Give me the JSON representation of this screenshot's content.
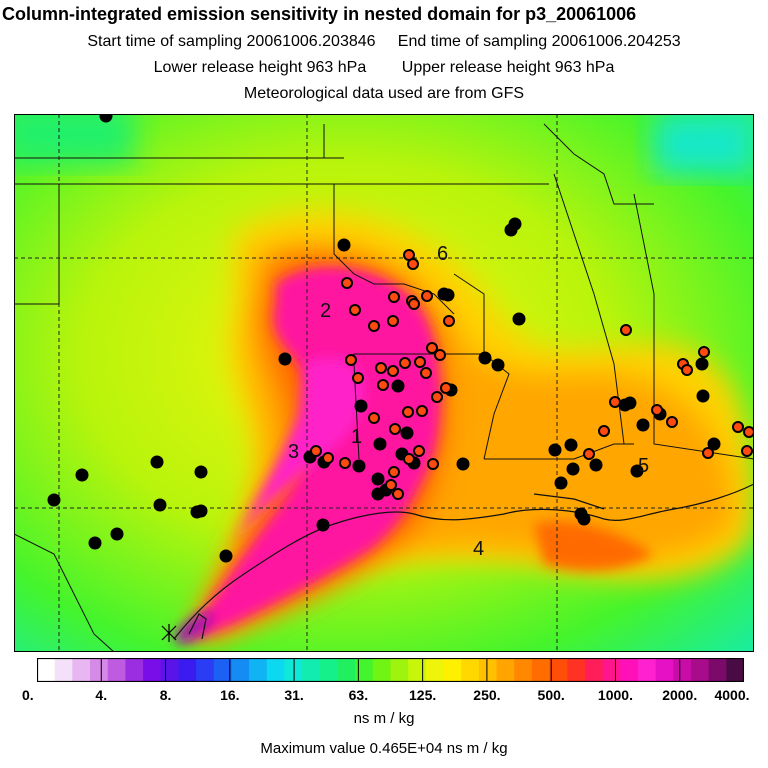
{
  "header": {
    "title": "Column-integrated emission sensitivity in nested domain for p3_20061006",
    "start_sampling": "Start time of sampling 20061006.203846",
    "end_sampling": "End time of sampling 20061006.204253",
    "lower_release": "Lower release height  963 hPa",
    "upper_release": "Upper release height  963 hPa",
    "met_data": "Meteorological data used are from GFS"
  },
  "map_labels": [
    "1",
    "2",
    "3",
    "4",
    "5",
    "6"
  ],
  "colorbar": {
    "ticks": [
      "0.",
      "4.",
      "8.",
      "16.",
      "31.",
      "63.",
      "125.",
      "250.",
      "500.",
      "1000.",
      "2000.",
      "4000."
    ],
    "units": "ns m / kg",
    "max_value": "Maximum value  0.465E+04 ns m / kg",
    "colors": [
      "#ffffff",
      "#f4e0f8",
      "#e8b6f0",
      "#d58ae8",
      "#bf5be0",
      "#9a2ee0",
      "#7a0ee8",
      "#5a14e8",
      "#3a1cf0",
      "#2a3cf4",
      "#1c60f4",
      "#148cf4",
      "#10b4f4",
      "#0cd8f0",
      "#10e8d8",
      "#12ecb0",
      "#16f08a",
      "#20f060",
      "#44f42c",
      "#70f414",
      "#9ef40c",
      "#c8f60a",
      "#eef40a",
      "#fff000",
      "#ffd800",
      "#ffc000",
      "#ffa400",
      "#ff8800",
      "#ff6c00",
      "#ff4e08",
      "#ff3224",
      "#ff1e5a",
      "#ff168c",
      "#ff10b8",
      "#ff20d0",
      "#e610c4",
      "#c80ca8",
      "#a80c8a",
      "#7c0a6a",
      "#4a0a44"
    ]
  }
}
